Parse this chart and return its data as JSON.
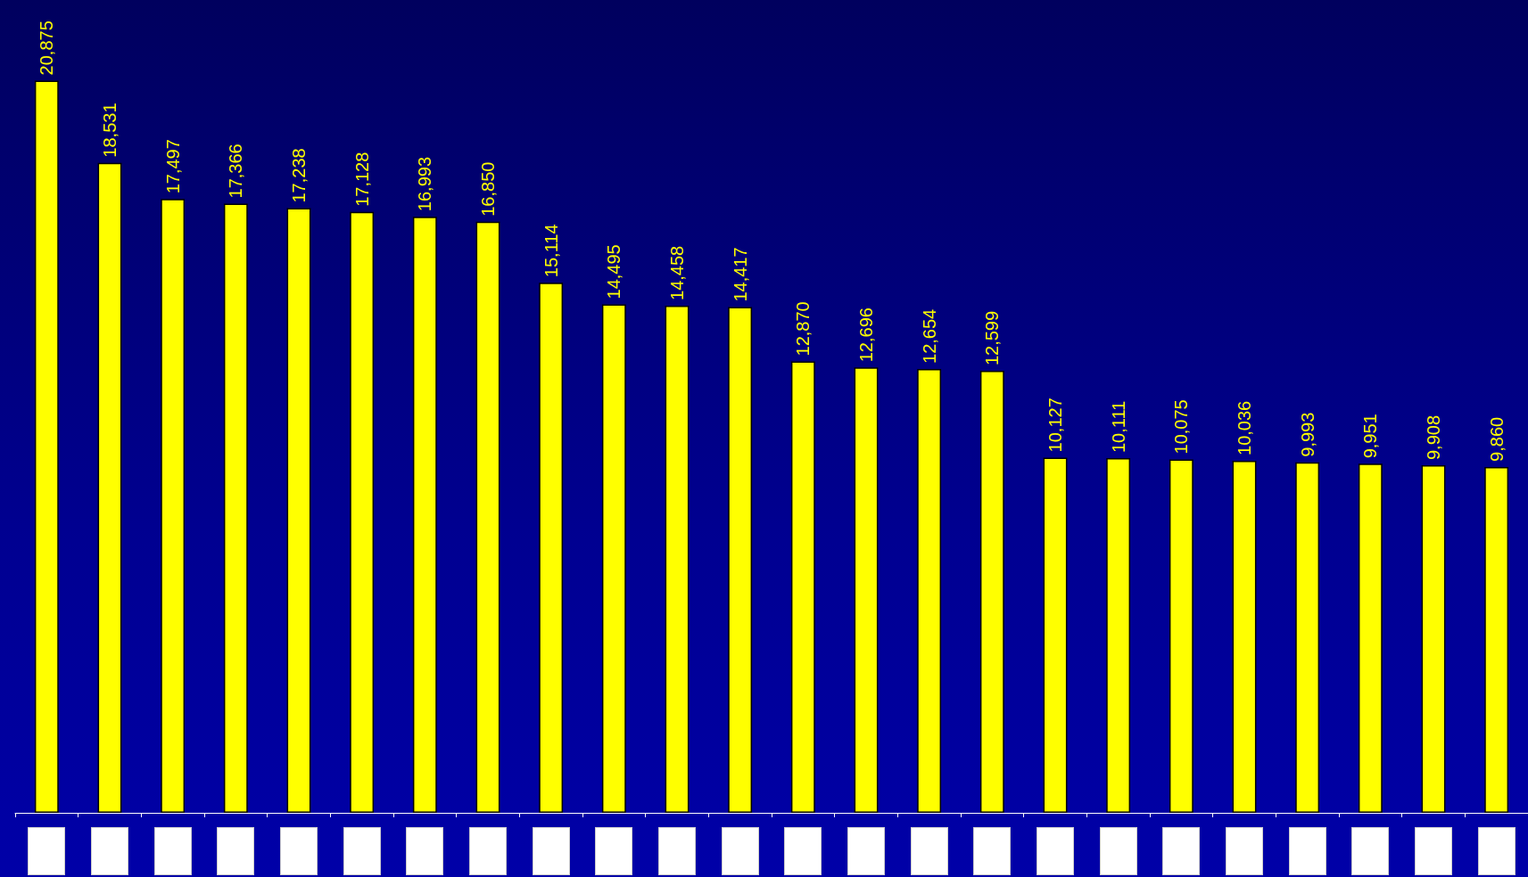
{
  "chart_data": {
    "type": "bar",
    "categories": [
      null,
      null,
      null,
      null,
      null,
      null,
      null,
      null,
      null,
      null,
      null,
      null,
      null,
      null,
      null,
      null,
      null,
      null,
      null,
      null,
      null,
      null,
      null,
      null
    ],
    "values": [
      20875,
      18531,
      17497,
      17366,
      17238,
      17128,
      16993,
      16850,
      15114,
      14495,
      14458,
      14417,
      12870,
      12696,
      12654,
      12599,
      10127,
      10111,
      10075,
      10036,
      9993,
      9951,
      9908,
      9860
    ],
    "value_labels": [
      "20,875",
      "18,531",
      "17,497",
      "17,366",
      "17,238",
      "17,128",
      "16,993",
      "16,850",
      "15,114",
      "14,495",
      "14,458",
      "14,417",
      "12,870",
      "12,696",
      "12,654",
      "12,599",
      "10,127",
      "10,111",
      "10,075",
      "10,036",
      "9,993",
      "9,951",
      "9,908",
      "9,860"
    ],
    "color": "#ffff00"
  }
}
